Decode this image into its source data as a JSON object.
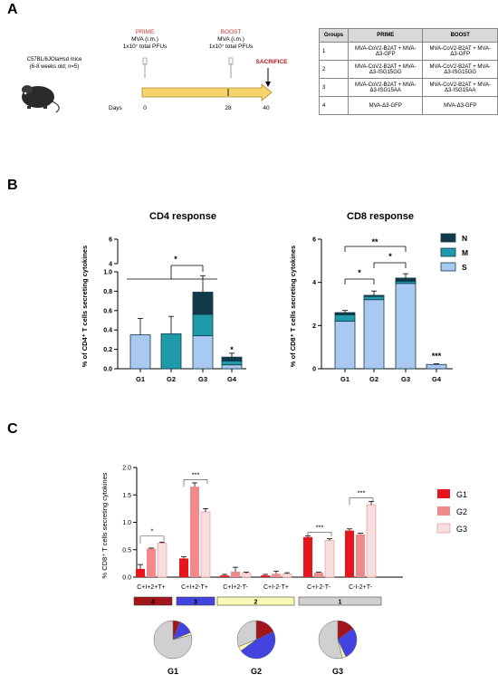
{
  "panels": {
    "a": "A",
    "b": "B",
    "c": "C"
  },
  "panelA": {
    "mouse_label": "C57BL/6JOlaHsd mice",
    "mouse_sub": "(6-8 weeks old; n=5)",
    "prime_title": "PRIME",
    "prime_l1": "MVA (i.m.)",
    "prime_l2": "1x10⁷ total PFUs",
    "boost_title": "BOOST",
    "boost_l1": "MVA (i.m.)",
    "boost_l2": "1x10⁷ total PFUs",
    "sacrifice": "SACRIFICE",
    "days_label": "Days",
    "days": [
      "0",
      "28",
      "40"
    ],
    "table": {
      "headers": [
        "Groups",
        "PRIME",
        "BOOST"
      ],
      "rows": [
        {
          "group": "1",
          "prime": "MVA-CoV2-B2AT + MVA-Δ3-GFP",
          "boost": "MVA-CoV2-B2AT + MVA-Δ3-GFP"
        },
        {
          "group": "2",
          "prime": "MVA-CoV2-B2AT + MVA-Δ3-ISG15GG",
          "boost": "MVA-CoV2-B2AT + MVA-Δ3-ISG15GG"
        },
        {
          "group": "3",
          "prime": "MVA-CoV2-B2AT + MVA-Δ3-ISG15AA",
          "boost": "MVA-CoV2-B2AT + MVA-Δ3-ISG15AA"
        },
        {
          "group": "4",
          "prime": "MVA-Δ3-GFP",
          "boost": "MVA-Δ3-GFP"
        }
      ]
    }
  },
  "chart_data": [
    {
      "type": "bar",
      "title": "CD4 response",
      "ylabel": "% of CD4⁺ T cells secreting cytokines",
      "categories": [
        "G1",
        "G2",
        "G3",
        "G4"
      ],
      "stacked": true,
      "broken_axis": true,
      "ylim_lower": [
        0,
        1.0
      ],
      "ylim_upper": [
        4,
        6
      ],
      "yticks_lower": [
        "0.0",
        "0.2",
        "0.4",
        "0.6",
        "0.8",
        "1.0"
      ],
      "yticks_upper": [
        "4",
        "6"
      ],
      "series": [
        {
          "name": "S",
          "color": "#a9c8f2",
          "values": [
            0.35,
            0,
            0.34,
            0.04
          ]
        },
        {
          "name": "M",
          "color": "#1e9aa8",
          "values": [
            0,
            0.36,
            0.22,
            0.04
          ]
        },
        {
          "name": "N",
          "color": "#12394a",
          "values": [
            0,
            0,
            0.23,
            0.04
          ]
        }
      ],
      "errors": [
        0.17,
        0.18,
        0.17,
        0.04
      ],
      "significance": [
        {
          "label": "*",
          "group": "G3"
        },
        {
          "label": "*",
          "group": "G4"
        }
      ]
    },
    {
      "type": "bar",
      "title": "CD8 response",
      "ylabel": "% of CD8⁺ T cells secreting cytokines",
      "categories": [
        "G1",
        "G2",
        "G3",
        "G4"
      ],
      "stacked": true,
      "ylim": [
        0,
        6
      ],
      "yticks": [
        "0",
        "2",
        "4",
        "6"
      ],
      "legend": [
        "N",
        "M",
        "S"
      ],
      "legend_position": "top-right",
      "series": [
        {
          "name": "S",
          "color": "#a9c8f2",
          "values": [
            2.2,
            3.2,
            3.95,
            0.2
          ]
        },
        {
          "name": "M",
          "color": "#1e9aa8",
          "values": [
            0.3,
            0.15,
            0.1,
            0.0
          ]
        },
        {
          "name": "N",
          "color": "#12394a",
          "values": [
            0.1,
            0.05,
            0.15,
            0.0
          ]
        }
      ],
      "errors": [
        0.1,
        0.2,
        0.2,
        0.03
      ],
      "significance": [
        {
          "label": "*",
          "from": "G1",
          "to": "G2"
        },
        {
          "label": "*",
          "from": "G2",
          "to": "G3"
        },
        {
          "label": "**",
          "from": "G1",
          "to": "G3"
        },
        {
          "label": "***",
          "group": "G4"
        }
      ]
    },
    {
      "type": "bar",
      "ylabel": "% CD8⁺ T cells secreting cytokines",
      "categories": [
        "C+I+2+T+",
        "C+I+2-T+",
        "C+I+2-T-",
        "C+I-2-T+",
        "C+I-2-T-",
        "C-I-2+T-"
      ],
      "ylim": [
        0,
        2.0
      ],
      "yticks": [
        "0.0",
        "0.5",
        "1.0",
        "1.5",
        "2.0"
      ],
      "series": [
        {
          "name": "G1",
          "color": "#e8141b",
          "values": [
            0.15,
            0.34,
            0.03,
            0.03,
            0.73,
            0.85
          ],
          "errors": [
            0.08,
            0.03,
            0.02,
            0.02,
            0.02,
            0.03
          ]
        },
        {
          "name": "G2",
          "color": "#f08a8a",
          "values": [
            0.52,
            1.65,
            0.1,
            0.06,
            0.08,
            0.78
          ],
          "errors": [
            0.01,
            0.07,
            0.08,
            0.05,
            0.01,
            0.02
          ]
        },
        {
          "name": "G3",
          "color": "#f7dede",
          "values": [
            0.62,
            1.19,
            0.07,
            0.06,
            0.67,
            1.32
          ],
          "errors": [
            0.02,
            0.06,
            0.02,
            0.02,
            0.03,
            0.06
          ]
        }
      ],
      "legend": [
        "G1",
        "G2",
        "G3"
      ],
      "legend_position": "right",
      "significance": [
        {
          "label": "*",
          "category": "C+I+2+T+"
        },
        {
          "label": "***",
          "category": "C+I+2-T+"
        },
        {
          "label": "***",
          "category": "C+I-2-T-"
        },
        {
          "label": "***",
          "category": "C-I-2+T-"
        }
      ],
      "function_bands": [
        {
          "label": "4",
          "color": "#a3141b"
        },
        {
          "label": "3",
          "color": "#4343e0"
        },
        {
          "label": "2",
          "color": "#fbfab4"
        },
        {
          "label": "1",
          "color": "#d0d0d0"
        }
      ]
    },
    {
      "type": "pie",
      "labels": [
        "G1",
        "G2",
        "G3"
      ],
      "slice_order": [
        "4",
        "3",
        "2",
        "1"
      ],
      "colors": [
        "#a3141b",
        "#4343e0",
        "#fbfab4",
        "#d0d0d0"
      ],
      "pies": [
        {
          "name": "G1",
          "values": [
            6,
            13,
            2,
            79
          ]
        },
        {
          "name": "G2",
          "values": [
            18,
            47,
            4,
            31
          ]
        },
        {
          "name": "G3",
          "values": [
            15,
            28,
            3,
            54
          ]
        }
      ]
    }
  ]
}
